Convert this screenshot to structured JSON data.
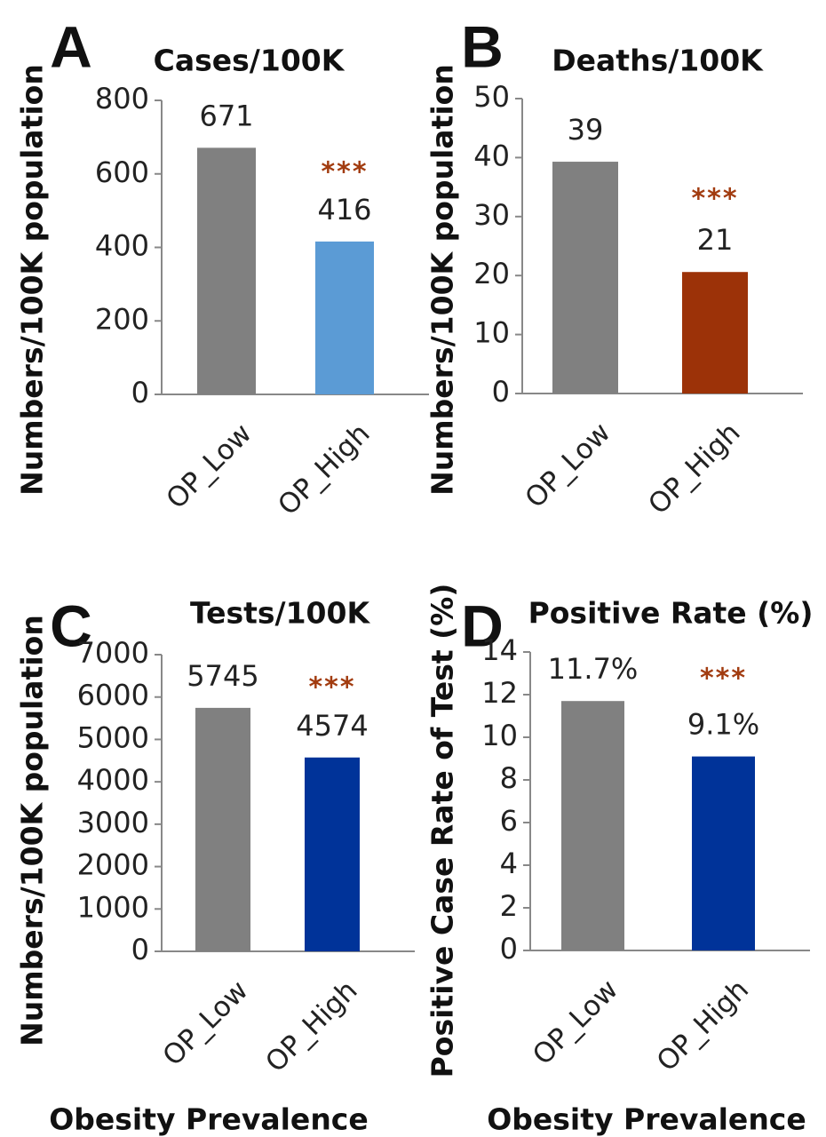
{
  "chart_data": [
    {
      "panel": "A",
      "type": "bar",
      "title": "Cases/100K",
      "ylabel": "Numbers/100K population",
      "xlabel": "",
      "categories": [
        "OP_Low",
        "OP_High"
      ],
      "values": [
        671,
        416
      ],
      "value_labels": [
        "671",
        "416"
      ],
      "colors": [
        "#808080",
        "#5b9bd5"
      ],
      "ylim": [
        0,
        800
      ],
      "yticks": [
        0,
        200,
        400,
        600,
        800
      ],
      "significance": "***",
      "significance_color": "#a23c10",
      "grid": false
    },
    {
      "panel": "B",
      "type": "bar",
      "title": "Deaths/100K",
      "ylabel": "Numbers/100K population",
      "xlabel": "",
      "categories": [
        "OP_Low",
        "OP_High"
      ],
      "values": [
        39.3,
        20.6
      ],
      "value_labels": [
        "39",
        "21"
      ],
      "colors": [
        "#808080",
        "#9c3208"
      ],
      "ylim": [
        0,
        50
      ],
      "yticks": [
        0,
        10,
        20,
        30,
        40,
        50
      ],
      "significance": "***",
      "significance_color": "#a23c10",
      "grid": false
    },
    {
      "panel": "C",
      "type": "bar",
      "title": "Tests/100K",
      "ylabel": "Numbers/100K population",
      "xlabel": "Obesity Prevalence",
      "categories": [
        "OP_Low",
        "OP_High"
      ],
      "values": [
        5745,
        4574
      ],
      "value_labels": [
        "5745",
        "4574"
      ],
      "colors": [
        "#808080",
        "#003399"
      ],
      "ylim": [
        0,
        7000
      ],
      "yticks": [
        0,
        1000,
        2000,
        3000,
        4000,
        5000,
        6000,
        7000
      ],
      "significance": "***",
      "significance_color": "#a23c10",
      "grid": false
    },
    {
      "panel": "D",
      "type": "bar",
      "title": "Positive Rate (%)",
      "ylabel": "Positive Case Rate of Test (%)",
      "xlabel": "Obesity Prevalence",
      "categories": [
        "OP_Low",
        "OP_High"
      ],
      "values": [
        11.7,
        9.1
      ],
      "value_labels": [
        "11.7%",
        "9.1%"
      ],
      "colors": [
        "#808080",
        "#003399"
      ],
      "ylim": [
        0,
        14
      ],
      "yticks": [
        0,
        2,
        4,
        6,
        8,
        10,
        12,
        14
      ],
      "significance": "***",
      "significance_color": "#a23c10",
      "grid": false
    }
  ]
}
